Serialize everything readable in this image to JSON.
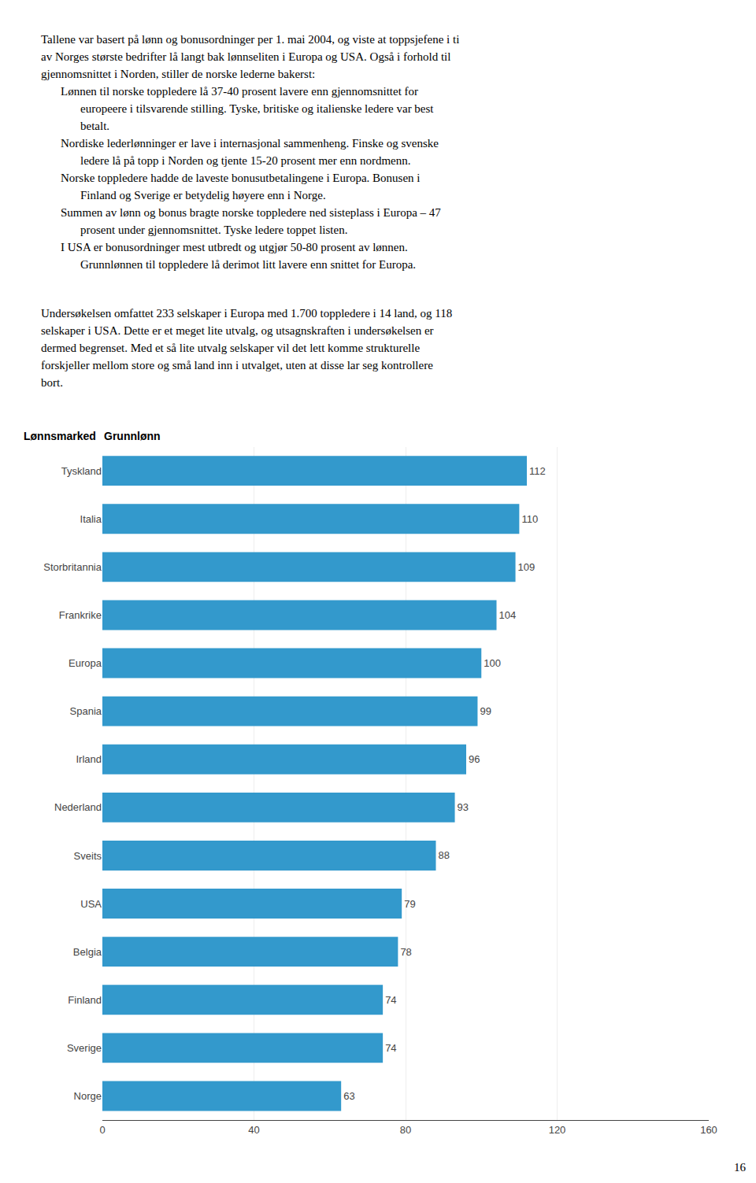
{
  "chart_data": {
    "type": "bar",
    "orientation": "horizontal",
    "ylabel": "Lønnsmarked",
    "xlabel": "Grunnlønn",
    "categories": [
      "Tyskland",
      "Italia",
      "Storbritannia",
      "Frankrike",
      "Europa",
      "Spania",
      "Irland",
      "Nederland",
      "Sveits",
      "USA",
      "Belgia",
      "Finland",
      "Sverige",
      "Norge"
    ],
    "values": [
      112,
      110,
      109,
      104,
      100,
      99,
      96,
      93,
      88,
      79,
      78,
      74,
      74,
      63
    ],
    "color": "#3399cc",
    "xlim": [
      0,
      160
    ],
    "xticks": [
      0,
      40,
      80,
      120,
      160
    ],
    "grid": true,
    "data_labels": true,
    "annotations": [
      "Tallene var basert på lønn og bonusordninger per 1. mai 2004, og viste at toppsjefene i ti\nav Norges største bedrifter lå langt bak lønnseliten i Europa og USA. Også i forhold til\ngjennomsnittet i Norden, stiller de norske lederne bakerst:",
      "Lønnen til norske toppledere lå 37-40 prosent lavere enn gjennomsnittet for\neuropeere i tilsvarende stilling. Tyske, britiske og italienske ledere var best\nbetalt.",
      "Nordiske lederlønninger er lave i internasjonal sammenheng. Finske og svenske\nledere lå på topp i Norden og tjente 15-20 prosent mer enn nordmenn.",
      "Norske toppledere hadde de laveste bonusutbetalingene i Europa. Bonusen i\nFinland og Sverige er betydelig høyere enn i Norge.",
      "Summen av lønn og bonus bragte norske toppledere ned sisteplass i Europa – 47\nprosent under gjennomsnittet. Tyske ledere toppet listen.",
      "I USA er bonusordninger mest utbredt og utgjør 50-80 prosent av lønnen.\nGrunnlønnen til toppledere lå derimot litt lavere enn snittet for Europa.",
      "Undersøkelsen omfattet 233 selskaper i Europa med 1.700 toppledere i 14 land, og 118\nselskaper i USA. Dette er et meget lite utvalg, og utsagnskraften i undersøkelsen er\ndermed begrenset. Med et så lite utvalg selskaper vil det lett komme strukturelle\nforskjeller mellom store og små land inn i utvalget, uten at disse lar seg kontrollere\nbort.",
      "16"
    ]
  }
}
